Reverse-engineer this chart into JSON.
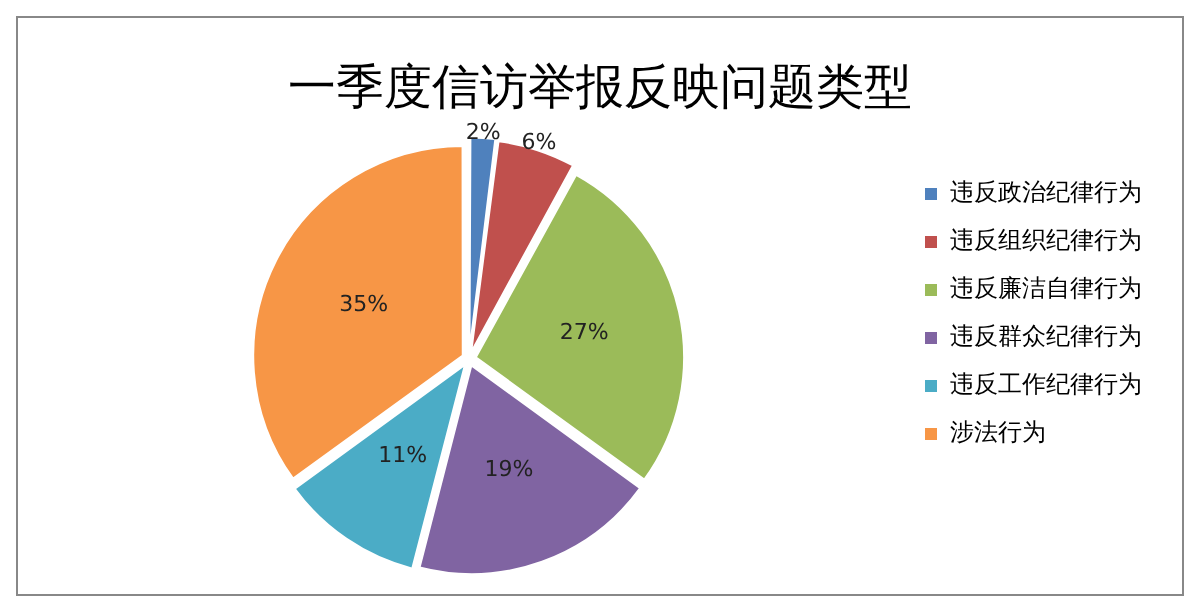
{
  "chart_data": {
    "type": "pie",
    "title": "一季度信访举报反映问题类型",
    "categories": [
      "违反政治纪律行为",
      "违反组织纪律行为",
      "违反廉洁自律行为",
      "违反群众纪律行为",
      "违反工作纪律行为",
      "涉法行为"
    ],
    "values": [
      2,
      6,
      27,
      19,
      11,
      35
    ],
    "value_labels": [
      "2%",
      "6%",
      "27%",
      "19%",
      "11%",
      "35%"
    ],
    "colors": [
      "#4f81bd",
      "#c0504d",
      "#9bbb59",
      "#8064a2",
      "#4bacc6",
      "#f79646"
    ],
    "legend": "right"
  }
}
